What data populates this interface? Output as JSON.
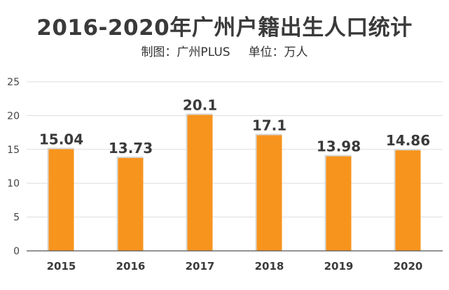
{
  "header": {
    "title": "2016-2020年广州户籍出生人口统计",
    "credit": "制图：广州PLUS",
    "unit": "单位：万人"
  },
  "colors": {
    "bar": "#f7941d",
    "bar_shadow": "#d9d9d9",
    "grid": "#dddddd",
    "axis": "#555555",
    "text": "#3a3a3a"
  },
  "chart_data": {
    "type": "bar",
    "title": "2016-2020年广州户籍出生人口统计",
    "subtitle": "制图：广州PLUS    单位：万人",
    "categories": [
      "2015",
      "2016",
      "2017",
      "2018",
      "2019",
      "2020"
    ],
    "values": [
      15.04,
      13.73,
      20.1,
      17.1,
      13.98,
      14.86
    ],
    "data_labels": [
      "15.04",
      "13.73",
      "20.1",
      "17.1",
      "13.98",
      "14.86"
    ],
    "ylim": [
      0,
      25
    ],
    "yticks": [
      "0",
      "5",
      "10",
      "15",
      "20",
      "25"
    ],
    "grid": true,
    "legend": "none"
  }
}
